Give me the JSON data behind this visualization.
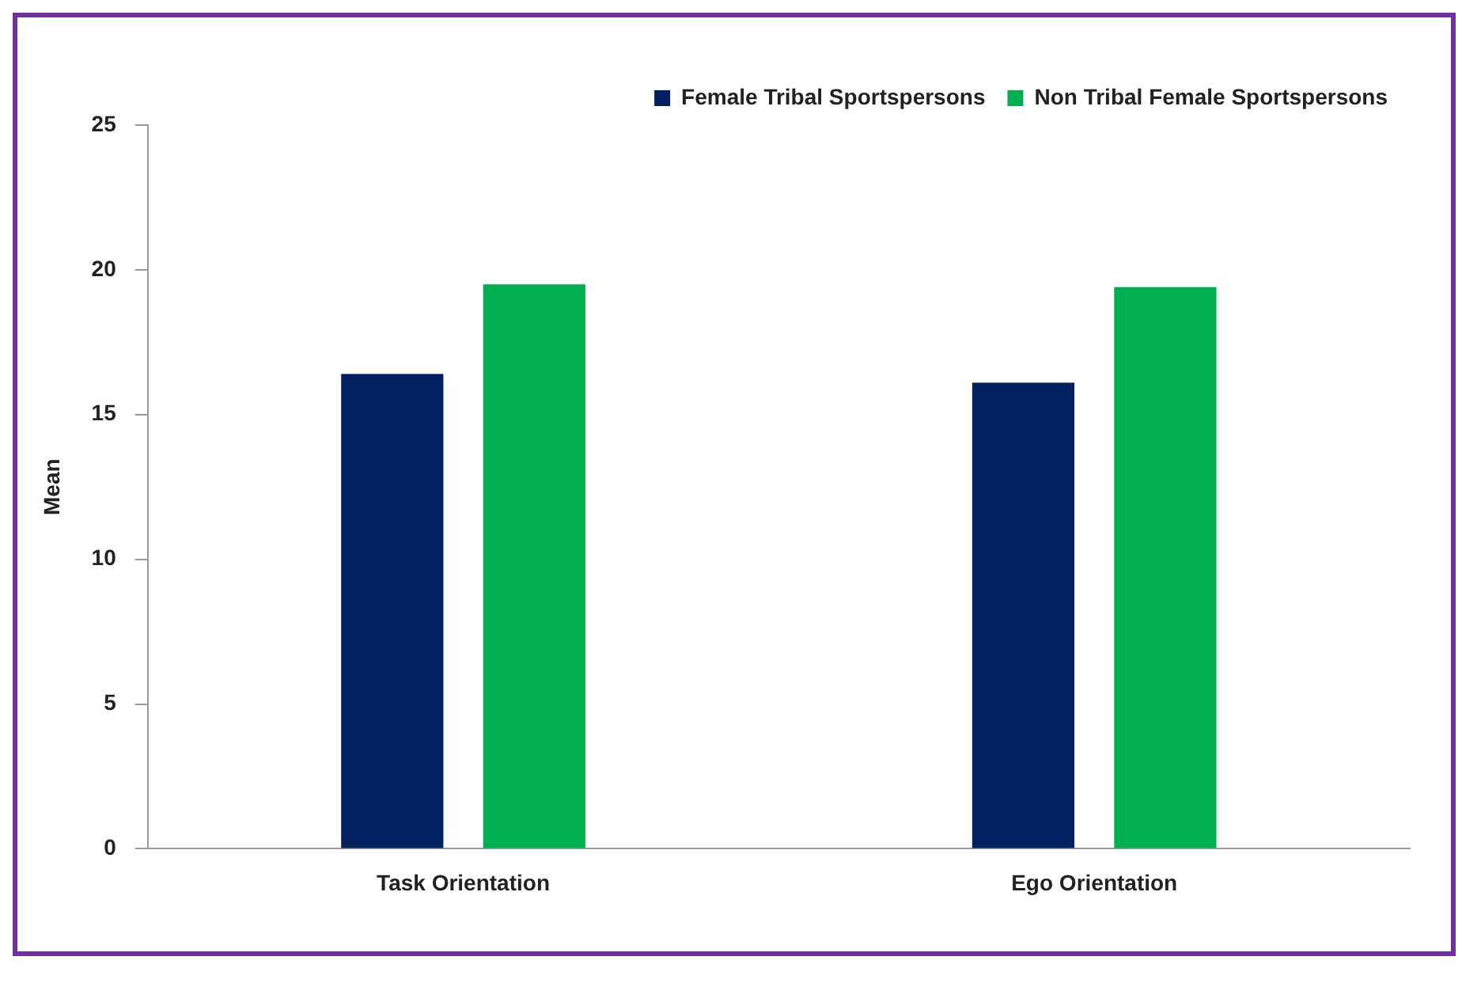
{
  "chart_data": {
    "type": "bar",
    "ylabel": "Mean",
    "categories": [
      "Task Orientation",
      "Ego Orientation"
    ],
    "series": [
      {
        "name": "Female Tribal Sportspersons",
        "color": "#002060",
        "values": [
          16.4,
          16.1
        ]
      },
      {
        "name": "Non Tribal Female Sportspersons",
        "color": "#00b050",
        "values": [
          19.5,
          19.4
        ]
      }
    ],
    "ylim": [
      0,
      25
    ],
    "yticks": [
      0,
      5,
      10,
      15,
      20,
      25
    ],
    "grid": false,
    "legend": "top right"
  }
}
